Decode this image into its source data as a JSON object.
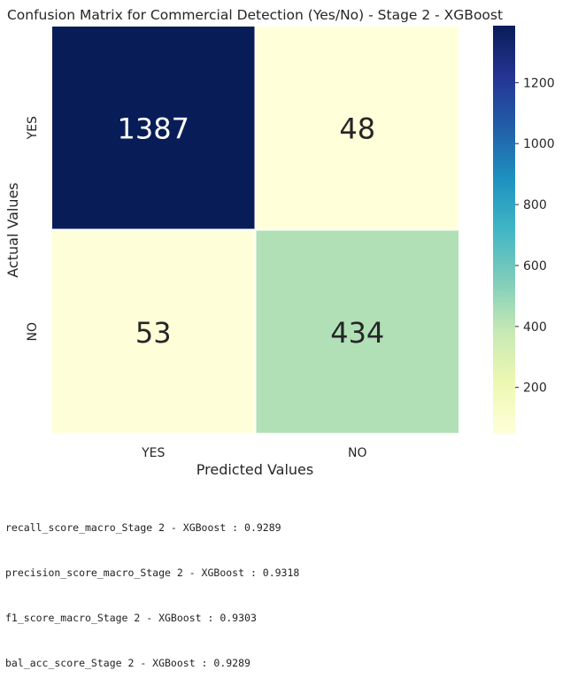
{
  "chart_data": {
    "type": "heatmap",
    "title": "Confusion Matrix for Commercial Detection (Yes/No) - Stage 2 - XGBoost",
    "xlabel": "Predicted Values",
    "ylabel": "Actual Values",
    "x_categories": [
      "YES",
      "NO"
    ],
    "y_categories": [
      "YES",
      "NO"
    ],
    "values": [
      [
        1387,
        48
      ],
      [
        53,
        434
      ]
    ],
    "colormap": "YlGnBu",
    "colorbar": {
      "min": 48,
      "max": 1387,
      "ticks": [
        200,
        400,
        600,
        800,
        1000,
        1200
      ]
    },
    "colors": {
      "high": "#081d58",
      "low": "#ffffd9",
      "text_on_dark": "#ffffff",
      "text_on_light": "#262626"
    }
  },
  "output": {
    "lines": [
      "recall_score_macro_Stage 2 - XGBoost : 0.9289",
      "precision_score_macro_Stage 2 - XGBoost : 0.9318",
      "f1_score_macro_Stage 2 - XGBoost : 0.9303",
      "bal_acc_score_Stage 2 - XGBoost : 0.9289"
    ]
  }
}
